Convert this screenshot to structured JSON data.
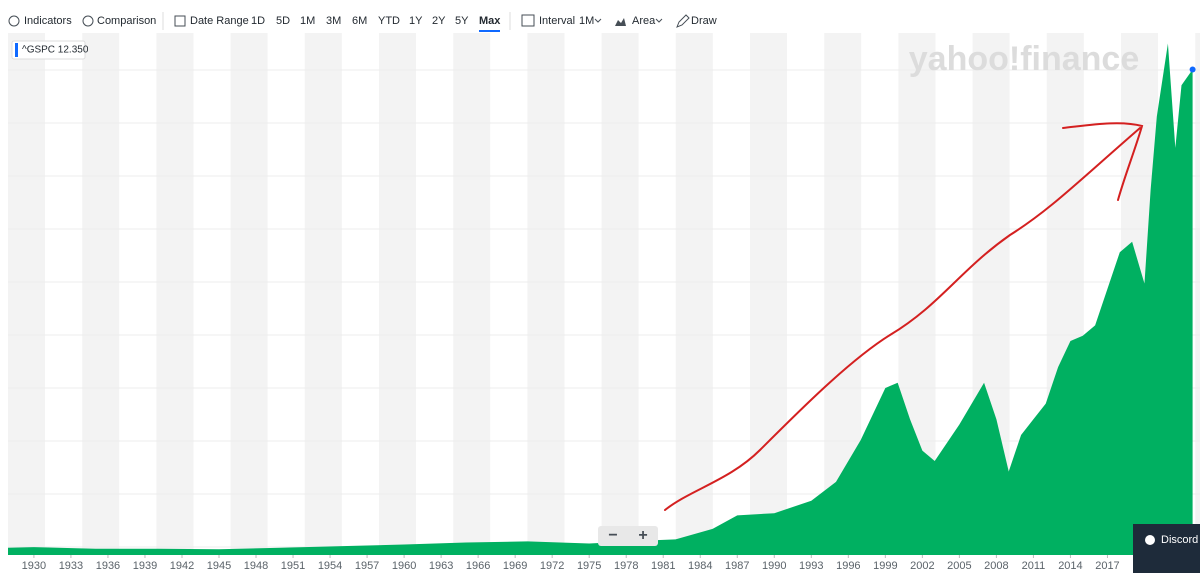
{
  "toolbar": {
    "indicators": "Indicators",
    "comparison": "Comparison",
    "date_range": "Date Range",
    "ranges": [
      "1D",
      "5D",
      "1M",
      "3M",
      "6M",
      "YTD",
      "1Y",
      "2Y",
      "5Y",
      "Max"
    ],
    "interval": "Interval",
    "interval_value": "1M",
    "chart_style": "Area",
    "draw": "Draw"
  },
  "watermark": "yahoo!finance",
  "zoom": [
    "−",
    "+"
  ],
  "discord": "Discord",
  "chart_data": {
    "type": "area",
    "legend": "^GSPC 12.350",
    "color": "#00b061",
    "x": [
      1927.9,
      1930,
      1935,
      1940,
      1945,
      1950,
      1955,
      1960,
      1965,
      1970,
      1975,
      1980,
      1982,
      1985,
      1987,
      1990,
      1993,
      1995,
      1997,
      1999,
      2000,
      2001,
      2002,
      2003,
      2005,
      2007,
      2008,
      2009,
      2010,
      2011,
      2012,
      2013,
      2014,
      2015,
      2016,
      2018,
      2019,
      2020,
      2020.5,
      2021,
      2021.9,
      2022.5,
      2023,
      2023.9
    ],
    "values": [
      70,
      75,
      60,
      60,
      55,
      70,
      85,
      100,
      120,
      130,
      110,
      140,
      150,
      250,
      380,
      400,
      520,
      700,
      1100,
      1600,
      1650,
      1300,
      1000,
      900,
      1250,
      1650,
      1300,
      800,
      1150,
      1300,
      1450,
      1800,
      2050,
      2100,
      2200,
      2900,
      3000,
      2600,
      3500,
      4200,
      4900,
      3900,
      4500,
      4650
    ],
    "xlim": [
      1927.9,
      2024.5
    ],
    "ylim": [
      0,
      5000
    ],
    "xticks": [
      1930,
      1933,
      1936,
      1939,
      1942,
      1945,
      1948,
      1951,
      1954,
      1957,
      1960,
      1963,
      1966,
      1969,
      1972,
      1975,
      1978,
      1981,
      1984,
      1987,
      1990,
      1993,
      1996,
      1999,
      2002,
      2005,
      2008,
      2011,
      2014,
      2017
    ]
  }
}
